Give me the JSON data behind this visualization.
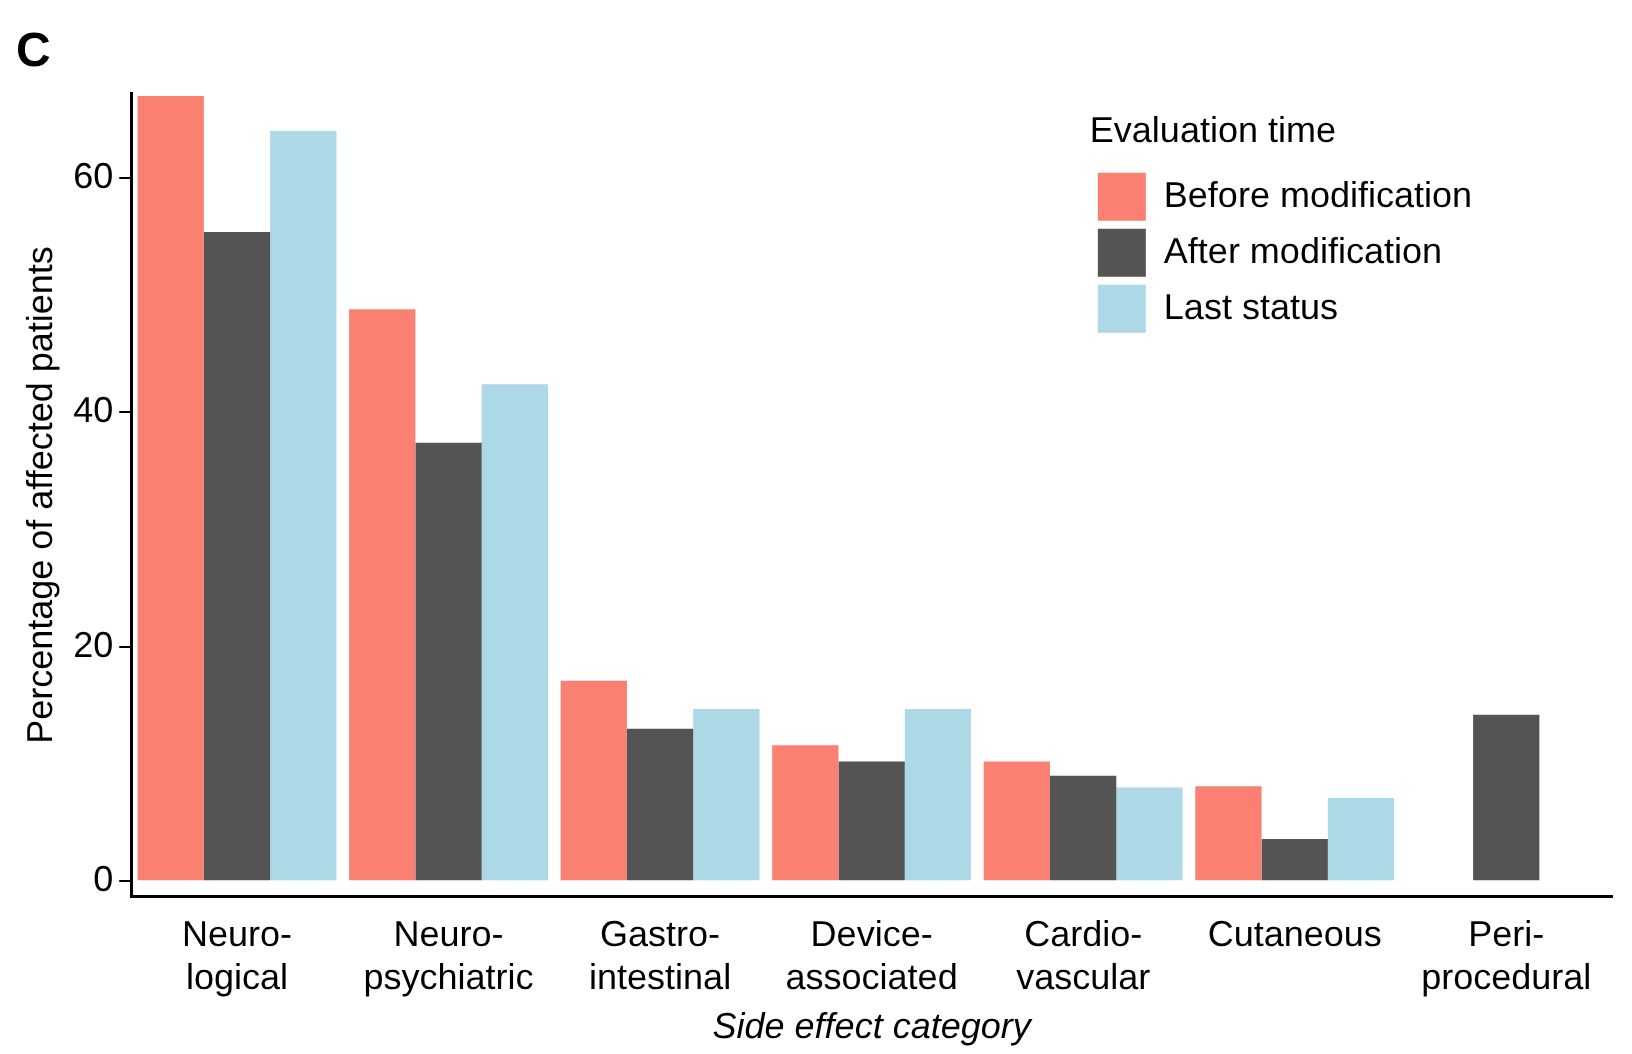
{
  "chart_data": {
    "type": "bar",
    "title": "C",
    "xlabel": "Side effect category",
    "ylabel": "Percentage of affected patients",
    "legend_title": "Evaluation time",
    "categories": [
      "Neuro-\nlogical",
      "Neuro-\npsychiatric",
      "Gastro-\nintestinal",
      "Device-\nassociated",
      "Cardio-\nvascular",
      "Cutaneous",
      "Peri-\nprocedural"
    ],
    "series": [
      {
        "name": "Before modification",
        "color": "#fa8072",
        "values": [
          67.0,
          48.8,
          17.1,
          11.6,
          10.2,
          8.1,
          null
        ]
      },
      {
        "name": "After modification",
        "color": "#545454",
        "values": [
          55.4,
          37.4,
          13.0,
          10.2,
          9.0,
          3.6,
          14.2
        ]
      },
      {
        "name": "Last status",
        "color": "#add8e6",
        "values": [
          64.0,
          42.4,
          14.7,
          14.7,
          8.0,
          7.1,
          null
        ]
      }
    ],
    "ylim": [
      -1.3,
      67.2
    ],
    "yticks": [
      0,
      20,
      40,
      60
    ],
    "grid": false,
    "legend": "top right"
  }
}
